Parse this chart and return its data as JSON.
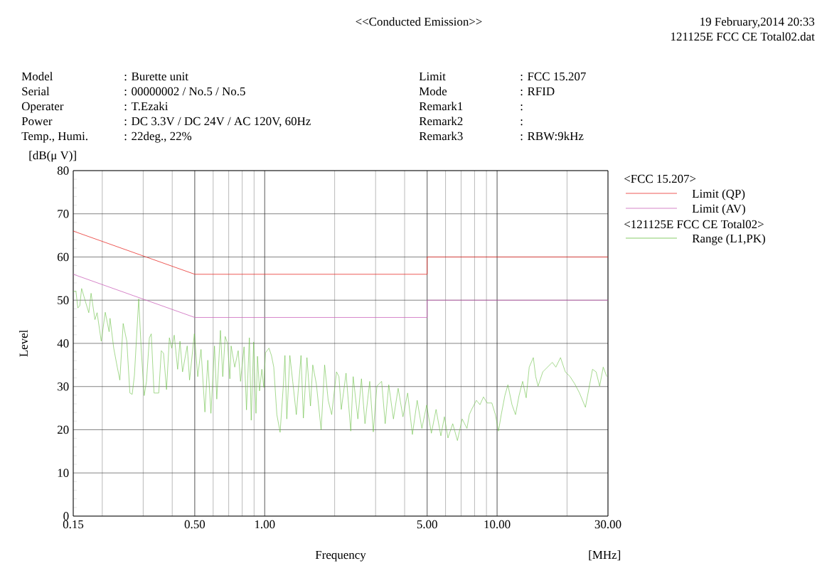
{
  "chart_data": {
    "type": "line",
    "title": "<<Conducted Emission>>",
    "xlabel": "Frequency",
    "ylabel": "Level",
    "legend_title": "<FCC 15.207>",
    "log": "x",
    "grid": true,
    "legend": "right",
    "xlim": [
      0.15,
      30
    ],
    "ylim": [
      0,
      80
    ],
    "xticks": [
      0.15,
      {
        "value": 0.5,
        "label": "0.50"
      },
      {
        "value": 1,
        "label": "1.00"
      },
      {
        "value": 5,
        "label": "5.00"
      },
      {
        "value": 10,
        "label": "10.00"
      },
      {
        "value": 30,
        "label": "30.00"
      }
    ],
    "yticks": [
      0,
      10,
      20,
      30,
      40,
      50,
      60,
      70,
      80
    ],
    "annotations": [
      "19 February,2014 20:33",
      "121125E FCC CE Total02.dat",
      "Model",
      "Serial",
      "Operater",
      "Power",
      "Temp., Humi.",
      ": Burette unit",
      ": 00000002 / No.5 / No.5",
      ": T.Ezaki",
      ": DC 3.3V / DC 24V / AC 120V, 60Hz",
      ": 22deg., 22%",
      "Limit",
      "Mode",
      "Remark1",
      "Remark2",
      "Remark3",
      ": FCC 15.207",
      ": RFID",
      ":",
      ":",
      ": RBW:9kHz",
      "[dB(μ V)]",
      "[MHz]",
      "<121125E FCC CE Total02>"
    ],
    "series": [
      {
        "name": "Limit (QP)",
        "color": "#e8302c",
        "x": [
          0.15,
          0.5,
          5,
          5,
          30
        ],
        "values": [
          66,
          56,
          56,
          60,
          60
        ]
      },
      {
        "name": "Limit (AV)",
        "color": "#cc66bb",
        "x": [
          0.15,
          0.5,
          5,
          5,
          30
        ],
        "values": [
          56,
          46,
          46,
          50,
          50
        ]
      },
      {
        "name": "Range (L1,PK)",
        "color": "#6abf45",
        "x": [
          0.15,
          0.154,
          0.157,
          0.16,
          0.163,
          0.169,
          0.175,
          0.179,
          0.186,
          0.19,
          0.198,
          0.206,
          0.214,
          0.216,
          0.224,
          0.232,
          0.238,
          0.246,
          0.255,
          0.263,
          0.269,
          0.275,
          0.287,
          0.294,
          0.303,
          0.31,
          0.319,
          0.325,
          0.334,
          0.35,
          0.359,
          0.367,
          0.378,
          0.389,
          0.398,
          0.408,
          0.422,
          0.432,
          0.443,
          0.464,
          0.475,
          0.498,
          0.515,
          0.532,
          0.553,
          0.569,
          0.587,
          0.608,
          0.622,
          0.645,
          0.66,
          0.676,
          0.692,
          0.708,
          0.717,
          0.743,
          0.769,
          0.787,
          0.815,
          0.835,
          0.859,
          0.875,
          0.896,
          0.917,
          0.931,
          0.95,
          0.972,
          0.991,
          1.007,
          1.043,
          1.069,
          1.094,
          1.128,
          1.165,
          1.202,
          1.222,
          1.245,
          1.283,
          1.32,
          1.368,
          1.433,
          1.467,
          1.52,
          1.574,
          1.61,
          1.668,
          1.749,
          1.811,
          1.876,
          1.942,
          2.037,
          2.087,
          2.136,
          2.239,
          2.346,
          2.403,
          2.517,
          2.608,
          2.701,
          2.831,
          2.933,
          3.039,
          3.186,
          3.3,
          3.418,
          3.581,
          3.753,
          3.935,
          4.122,
          4.321,
          4.531,
          4.746,
          4.975,
          5.215,
          5.463,
          5.728,
          5.933,
          6.146,
          6.443,
          6.75,
          7.076,
          7.419,
          7.594,
          7.772,
          8.147,
          8.439,
          8.741,
          9.055,
          9.493,
          9.833,
          10.14,
          10.42,
          10.8,
          11.13,
          11.59,
          12.0,
          12.43,
          12.88,
          13.34,
          13.75,
          14.32,
          14.66,
          15.01,
          15.73,
          17.28,
          17.9,
          18.75,
          19.66,
          20.61,
          21.59,
          22.63,
          23.99,
          24.85,
          25.74,
          26.67,
          27.63,
          28.62,
          29.65
        ],
        "values": [
          52.0,
          52.1,
          48.2,
          48.7,
          52.7,
          49.8,
          47.1,
          51.6,
          45.5,
          47.1,
          40.5,
          47.2,
          42.7,
          45.8,
          38.9,
          34.5,
          31.5,
          44.6,
          40.5,
          28.5,
          28.2,
          32.6,
          50.3,
          38.9,
          27.9,
          31.2,
          41.3,
          42.2,
          28.5,
          28.5,
          38.3,
          37.7,
          29.3,
          41.3,
          38.9,
          41.9,
          34.0,
          40.5,
          33.4,
          39.4,
          31.5,
          42.2,
          32.3,
          38.6,
          24.1,
          36.1,
          23.8,
          39.4,
          27.1,
          43.0,
          32.3,
          41.6,
          40.0,
          31.8,
          39.4,
          34.5,
          38.3,
          31.2,
          39.2,
          24.6,
          41.3,
          22.2,
          40.3,
          23.8,
          37.0,
          29.0,
          34.0,
          29.8,
          37.8,
          38.9,
          37.2,
          34.5,
          23.5,
          19.4,
          30.1,
          37.2,
          22.5,
          37.2,
          31.2,
          23.5,
          37.2,
          22.7,
          36.7,
          25.5,
          35.0,
          30.6,
          20.0,
          35.0,
          26.8,
          23.5,
          33.4,
          32.3,
          24.7,
          33.1,
          19.7,
          32.3,
          22.5,
          31.8,
          21.4,
          31.2,
          19.5,
          30.1,
          31.2,
          21.4,
          30.4,
          22.5,
          29.6,
          23.0,
          28.5,
          18.9,
          26.8,
          20.3,
          25.7,
          19.2,
          24.7,
          18.6,
          23.0,
          18.1,
          21.4,
          17.5,
          22.5,
          20.3,
          23.5,
          24.7,
          26.8,
          25.8,
          27.6,
          26.2,
          26.2,
          23.5,
          19.7,
          23.5,
          27.9,
          30.4,
          25.8,
          23.5,
          27.9,
          31.2,
          27.4,
          34.5,
          36.7,
          32.3,
          30.1,
          33.4,
          35.6,
          34.5,
          36.7,
          33.4,
          32.3,
          30.6,
          28.5,
          25.2,
          29.6,
          34.0,
          33.4,
          30.1,
          34.5,
          32.3
        ]
      }
    ]
  }
}
